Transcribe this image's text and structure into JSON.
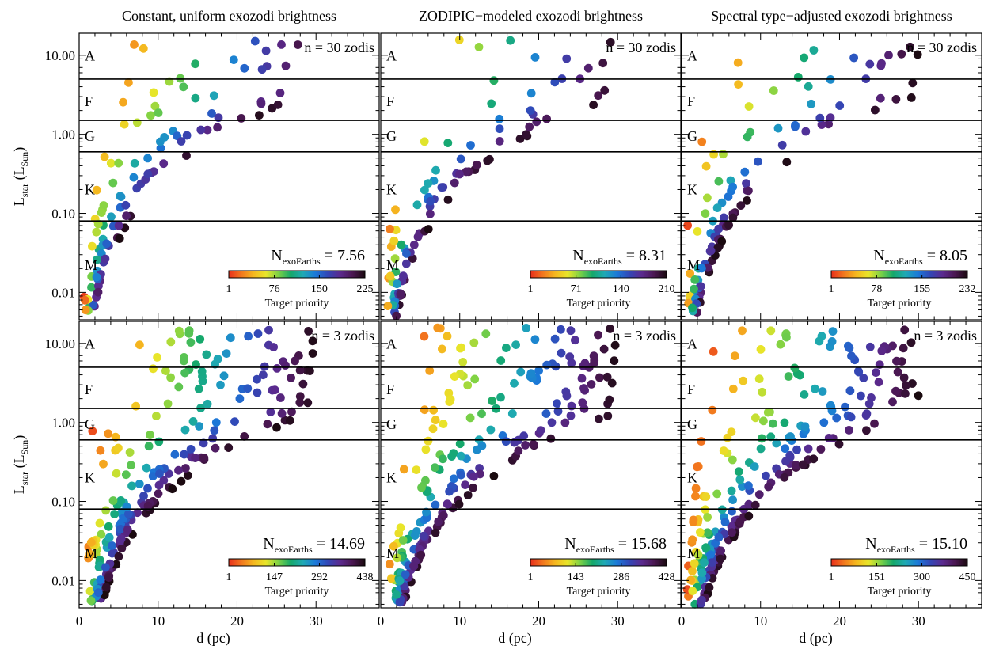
{
  "chart_data": [
    {
      "type": "scatter",
      "title": "Constant, uniform exozodi brightness",
      "annotation": "n = 30 zodis",
      "n_exoearths": "7.56",
      "colorbar_ticks": [
        "1",
        "76",
        "150",
        "225"
      ],
      "colorbar_max": 225,
      "colorbar_label": "Target priority",
      "xlabel": "",
      "ylabel": "L_star (L_Sun)",
      "xlim": [
        0,
        38
      ],
      "ylim": [
        0.0045,
        19
      ],
      "y_scale": "log"
    },
    {
      "type": "scatter",
      "title": "ZODIPIC−modeled exozodi brightness",
      "annotation": "n = 30 zodis",
      "n_exoearths": "8.31",
      "colorbar_ticks": [
        "1",
        "71",
        "140",
        "210"
      ],
      "colorbar_max": 210,
      "colorbar_label": "Target priority",
      "xlabel": "",
      "ylabel": "",
      "xlim": [
        0,
        38
      ],
      "ylim": [
        0.0045,
        19
      ],
      "y_scale": "log"
    },
    {
      "type": "scatter",
      "title": "Spectral type−adjusted exozodi brightness",
      "annotation": "n = 30 zodis",
      "n_exoearths": "8.05",
      "colorbar_ticks": [
        "1",
        "78",
        "155",
        "232"
      ],
      "colorbar_max": 232,
      "colorbar_label": "Target priority",
      "xlabel": "",
      "ylabel": "",
      "xlim": [
        0,
        38
      ],
      "ylim": [
        0.0045,
        19
      ],
      "y_scale": "log"
    },
    {
      "type": "scatter",
      "title": "",
      "annotation": "n = 3 zodis",
      "n_exoearths": "14.69",
      "colorbar_ticks": [
        "1",
        "147",
        "292",
        "438"
      ],
      "colorbar_max": 438,
      "colorbar_label": "Target priority",
      "xlabel": "d (pc)",
      "ylabel": "L_star (L_Sun)",
      "xlim": [
        0,
        38
      ],
      "ylim": [
        0.0045,
        19
      ],
      "y_scale": "log"
    },
    {
      "type": "scatter",
      "title": "",
      "annotation": "n = 3 zodis",
      "n_exoearths": "15.68",
      "colorbar_ticks": [
        "1",
        "143",
        "286",
        "428"
      ],
      "colorbar_max": 428,
      "colorbar_label": "Target priority",
      "xlabel": "d (pc)",
      "ylabel": "",
      "xlim": [
        0,
        38
      ],
      "ylim": [
        0.0045,
        19
      ],
      "y_scale": "log"
    },
    {
      "type": "scatter",
      "title": "",
      "annotation": "n = 3 zodis",
      "n_exoearths": "15.10",
      "colorbar_ticks": [
        "1",
        "151",
        "300",
        "450"
      ],
      "colorbar_max": 450,
      "colorbar_label": "Target priority",
      "xlabel": "d (pc)",
      "ylabel": "",
      "xlim": [
        0,
        38
      ],
      "ylim": [
        0.0045,
        19
      ],
      "y_scale": "log"
    }
  ],
  "shared": {
    "n_label": "N",
    "n_sub": "exoEarths",
    "n_eq": "=",
    "spectral_classes": [
      "A",
      "F",
      "G",
      "K",
      "M"
    ],
    "class_boundaries": [
      5.0,
      1.5,
      0.6,
      0.08
    ],
    "y_ticks": [
      "10.00",
      "1.00",
      "0.10",
      "0.01"
    ],
    "x_ticks": [
      "0",
      "10",
      "20",
      "30"
    ],
    "ylabel_main": "L",
    "ylabel_sub": "star",
    "ylabel_paren": "(L",
    "ylabel_sub2": "Sun",
    "ylabel_close": ")",
    "colormap": [
      "#e8301c",
      "#f2761e",
      "#f5b71f",
      "#e8e52a",
      "#7ed245",
      "#15a86a",
      "#1fa9b4",
      "#1b79d8",
      "#3247b6",
      "#5b2a8e",
      "#4a1751",
      "#1a0a0f"
    ]
  }
}
